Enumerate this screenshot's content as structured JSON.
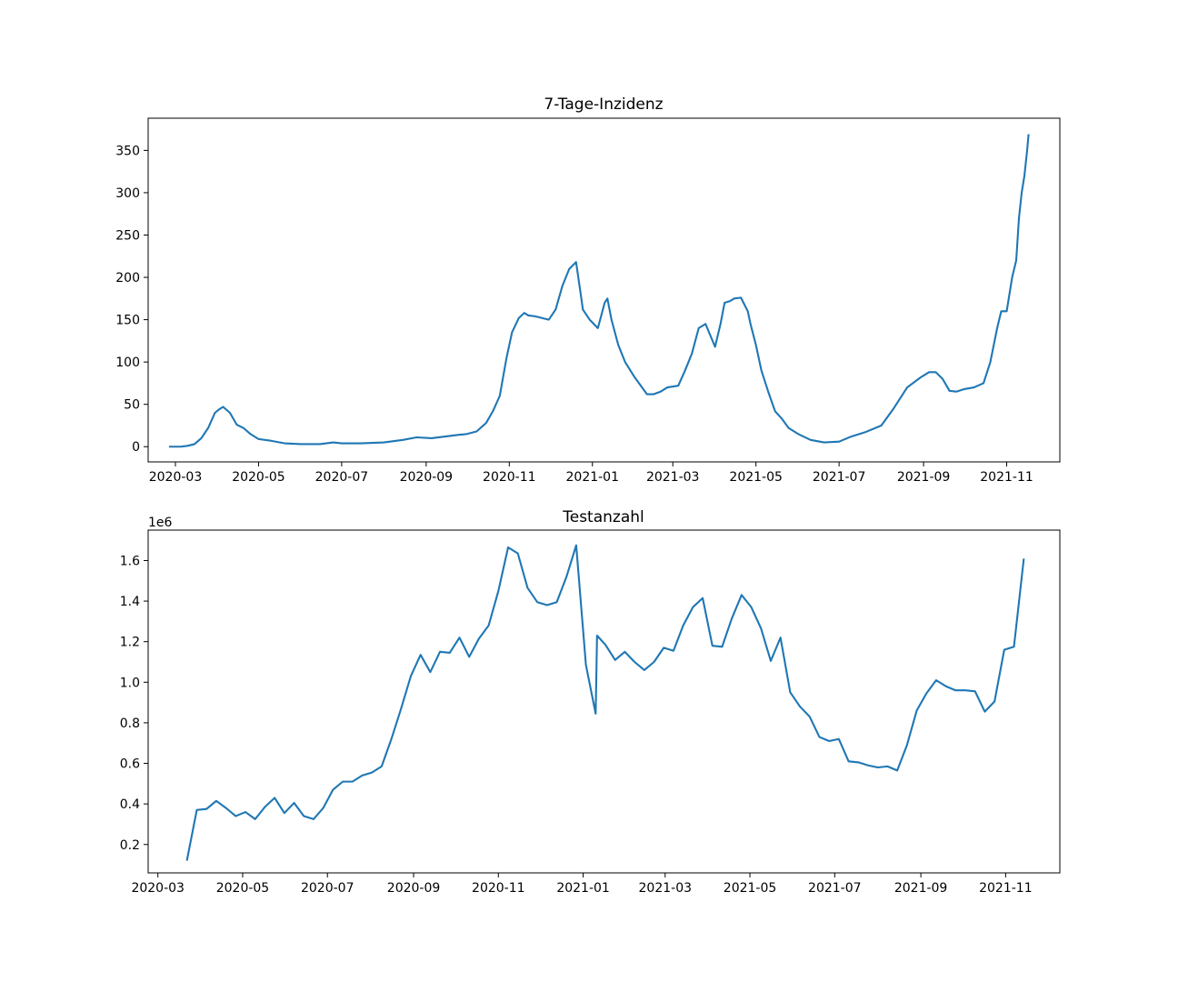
{
  "colors": {
    "line": "#1f77b4",
    "axes": "#000000",
    "background": "#ffffff"
  },
  "chart_data": [
    {
      "type": "line",
      "title": "7-Tage-Inzidenz",
      "xlabel": "",
      "ylabel": "",
      "x_is_date": true,
      "xlim": [
        "2020-02-10",
        "2021-12-10"
      ],
      "ylim": [
        -18,
        388
      ],
      "xticks": [
        "2020-03",
        "2020-05",
        "2020-07",
        "2020-09",
        "2020-11",
        "2021-01",
        "2021-03",
        "2021-05",
        "2021-07",
        "2021-09",
        "2021-11"
      ],
      "yticks": [
        "0",
        "50",
        "100",
        "150",
        "200",
        "250",
        "300",
        "350"
      ],
      "grid": false,
      "legend": "none",
      "series": [
        {
          "x": [
            "2020-02-26",
            "2020-03-05",
            "2020-03-10",
            "2020-03-15",
            "2020-03-20",
            "2020-03-25",
            "2020-03-30",
            "2020-04-02",
            "2020-04-05",
            "2020-04-10",
            "2020-04-15",
            "2020-04-20",
            "2020-04-25",
            "2020-05-01",
            "2020-05-10",
            "2020-05-20",
            "2020-06-01",
            "2020-06-15",
            "2020-06-25",
            "2020-07-01",
            "2020-07-15",
            "2020-08-01",
            "2020-08-15",
            "2020-08-25",
            "2020-09-05",
            "2020-09-15",
            "2020-09-25",
            "2020-10-01",
            "2020-10-08",
            "2020-10-15",
            "2020-10-20",
            "2020-10-25",
            "2020-10-30",
            "2020-11-03",
            "2020-11-08",
            "2020-11-12",
            "2020-11-15",
            "2020-11-20",
            "2020-11-25",
            "2020-11-30",
            "2020-12-05",
            "2020-12-10",
            "2020-12-15",
            "2020-12-20",
            "2020-12-23",
            "2020-12-25",
            "2020-12-30",
            "2021-01-05",
            "2021-01-10",
            "2021-01-12",
            "2021-01-15",
            "2021-01-20",
            "2021-01-25",
            "2021-02-01",
            "2021-02-10",
            "2021-02-15",
            "2021-02-20",
            "2021-02-25",
            "2021-03-05",
            "2021-03-10",
            "2021-03-15",
            "2021-03-20",
            "2021-03-25",
            "2021-04-01",
            "2021-04-05",
            "2021-04-08",
            "2021-04-12",
            "2021-04-15",
            "2021-04-20",
            "2021-04-25",
            "2021-04-27",
            "2021-05-01",
            "2021-05-05",
            "2021-05-10",
            "2021-05-15",
            "2021-05-20",
            "2021-05-25",
            "2021-06-01",
            "2021-06-10",
            "2021-06-20",
            "2021-07-01",
            "2021-07-10",
            "2021-07-20",
            "2021-08-01",
            "2021-08-10",
            "2021-08-20",
            "2021-08-30",
            "2021-09-05",
            "2021-09-10",
            "2021-09-15",
            "2021-09-20",
            "2021-09-25",
            "2021-10-01",
            "2021-10-08",
            "2021-10-15",
            "2021-10-20",
            "2021-10-25",
            "2021-10-28",
            "2021-11-01",
            "2021-11-05",
            "2021-11-08",
            "2021-11-10",
            "2021-11-12",
            "2021-11-14",
            "2021-11-16",
            "2021-11-17"
          ],
          "y": [
            0,
            0,
            1,
            3,
            10,
            22,
            40,
            44,
            47,
            40,
            26,
            22,
            15,
            9,
            7,
            4,
            3,
            3,
            5,
            4,
            4,
            5,
            8,
            11,
            10,
            12,
            14,
            15,
            18,
            28,
            42,
            60,
            105,
            135,
            152,
            158,
            155,
            154,
            152,
            150,
            162,
            190,
            210,
            218,
            185,
            162,
            150,
            140,
            170,
            175,
            150,
            120,
            100,
            82,
            62,
            62,
            65,
            70,
            72,
            90,
            110,
            140,
            145,
            118,
            145,
            170,
            172,
            175,
            176,
            160,
            145,
            120,
            90,
            65,
            42,
            33,
            22,
            15,
            8,
            5,
            6,
            12,
            17,
            25,
            45,
            70,
            82,
            88,
            88,
            80,
            66,
            65,
            68,
            70,
            75,
            100,
            140,
            160,
            160,
            200,
            220,
            270,
            300,
            320,
            350,
            368
          ]
        }
      ]
    },
    {
      "type": "line",
      "title": "Testanzahl",
      "xlabel": "",
      "ylabel": "",
      "x_is_date": true,
      "xlim": [
        "2020-02-23",
        "2021-12-10"
      ],
      "ylim": [
        0.06,
        1.75
      ],
      "y_offset_label": "1e6",
      "xticks": [
        "2020-03",
        "2020-05",
        "2020-07",
        "2020-09",
        "2020-11",
        "2021-01",
        "2021-03",
        "2021-05",
        "2021-07",
        "2021-09",
        "2021-11"
      ],
      "yticks": [
        "0.2",
        "0.4",
        "0.6",
        "0.8",
        "1.0",
        "1.2",
        "1.4",
        "1.6"
      ],
      "grid": false,
      "legend": "none",
      "series": [
        {
          "x": [
            "2020-03-22",
            "2020-03-29",
            "2020-04-05",
            "2020-04-12",
            "2020-04-19",
            "2020-04-26",
            "2020-05-03",
            "2020-05-10",
            "2020-05-17",
            "2020-05-24",
            "2020-05-31",
            "2020-06-07",
            "2020-06-14",
            "2020-06-21",
            "2020-06-28",
            "2020-07-05",
            "2020-07-12",
            "2020-07-19",
            "2020-07-26",
            "2020-08-02",
            "2020-08-09",
            "2020-08-16",
            "2020-08-23",
            "2020-08-30",
            "2020-09-06",
            "2020-09-13",
            "2020-09-20",
            "2020-09-27",
            "2020-10-04",
            "2020-10-11",
            "2020-10-18",
            "2020-10-25",
            "2020-11-01",
            "2020-11-08",
            "2020-11-15",
            "2020-11-22",
            "2020-11-29",
            "2020-12-06",
            "2020-12-13",
            "2020-12-20",
            "2020-12-27",
            "2021-01-03",
            "2021-01-10",
            "2021-01-11",
            "2021-01-17",
            "2021-01-24",
            "2021-01-31",
            "2021-02-07",
            "2021-02-14",
            "2021-02-21",
            "2021-02-28",
            "2021-03-07",
            "2021-03-14",
            "2021-03-21",
            "2021-03-28",
            "2021-04-04",
            "2021-04-11",
            "2021-04-18",
            "2021-04-25",
            "2021-05-02",
            "2021-05-09",
            "2021-05-16",
            "2021-05-23",
            "2021-05-30",
            "2021-06-06",
            "2021-06-13",
            "2021-06-20",
            "2021-06-27",
            "2021-07-04",
            "2021-07-11",
            "2021-07-18",
            "2021-07-25",
            "2021-08-01",
            "2021-08-08",
            "2021-08-15",
            "2021-08-22",
            "2021-08-29",
            "2021-09-05",
            "2021-09-12",
            "2021-09-19",
            "2021-09-26",
            "2021-10-03",
            "2021-10-10",
            "2021-10-17",
            "2021-10-24",
            "2021-10-31",
            "2021-11-07",
            "2021-11-14"
          ],
          "y": [
            0.125,
            0.37,
            0.375,
            0.415,
            0.38,
            0.34,
            0.36,
            0.325,
            0.385,
            0.43,
            0.355,
            0.405,
            0.34,
            0.325,
            0.38,
            0.47,
            0.51,
            0.51,
            0.54,
            0.555,
            0.585,
            0.72,
            0.87,
            1.03,
            1.135,
            1.05,
            1.15,
            1.145,
            1.22,
            1.125,
            1.215,
            1.28,
            1.45,
            1.665,
            1.635,
            1.465,
            1.395,
            1.38,
            1.395,
            1.52,
            1.675,
            1.085,
            0.845,
            1.23,
            1.185,
            1.11,
            1.15,
            1.1,
            1.06,
            1.1,
            1.17,
            1.155,
            1.28,
            1.37,
            1.415,
            1.18,
            1.175,
            1.315,
            1.43,
            1.37,
            1.265,
            1.105,
            1.22,
            0.95,
            0.88,
            0.83,
            0.73,
            0.71,
            0.72,
            0.61,
            0.605,
            0.59,
            0.58,
            0.585,
            0.565,
            0.69,
            0.86,
            0.945,
            1.01,
            0.98,
            0.96,
            0.96,
            0.955,
            0.855,
            0.905,
            1.16,
            1.175,
            1.605
          ]
        }
      ]
    }
  ]
}
